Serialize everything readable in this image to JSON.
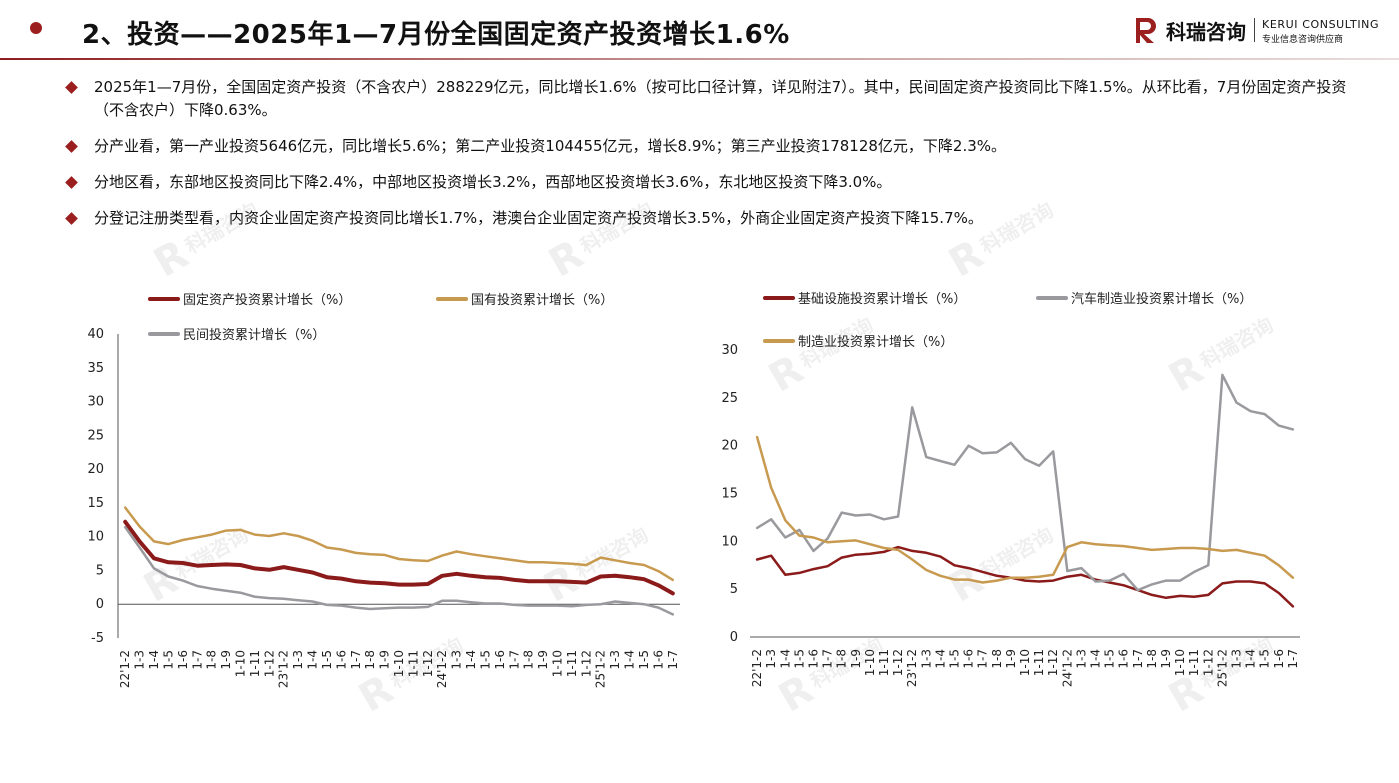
{
  "header": {
    "title": "2、投资——2025年1—7月份全国固定资产投资增长1.6%",
    "logo_cn": "科瑞咨询",
    "logo_en": "KERUI CONSULTING",
    "logo_sub": "专业信息咨询供应商",
    "accent": "#9b1f1f"
  },
  "bullets": [
    "2025年1—7月份，全国固定资产投资（不含农户）288229亿元，同比增长1.6%（按可比口径计算，详见附注7）。其中，民间固定资产投资同比下降1.5%。从环比看，7月份固定资产投资（不含农户）下降0.63%。",
    "分产业看，第一产业投资5646亿元，同比增长5.6%；第二产业投资104455亿元，增长8.9%；第三产业投资178128亿元，下降2.3%。",
    "分地区看，东部地区投资同比下降2.4%，中部地区投资增长3.2%，西部地区投资增长3.6%，东北地区投资下降3.0%。",
    "分登记注册类型看，内资企业固定资产投资同比增长1.7%，港澳台企业固定资产投资增长3.5%，外商企业固定资产投资下降15.7%。"
  ],
  "watermark_text": "科瑞咨询",
  "chart_data": [
    {
      "type": "line",
      "ylim": [
        -5,
        40
      ],
      "yticks": [
        -5,
        0,
        5,
        10,
        15,
        20,
        25,
        30,
        35,
        40
      ],
      "categories": [
        "22'1-2",
        "1-3",
        "1-4",
        "1-5",
        "1-6",
        "1-7",
        "1-8",
        "1-9",
        "1-10",
        "1-11",
        "1-12",
        "23'1-2",
        "1-3",
        "1-4",
        "1-5",
        "1-6",
        "1-7",
        "1-8",
        "1-9",
        "1-10",
        "1-11",
        "1-12",
        "24'1-2",
        "1-3",
        "1-4",
        "1-5",
        "1-6",
        "1-7",
        "1-8",
        "1-9",
        "1-10",
        "1-11",
        "1-12",
        "25'1-2",
        "1-3",
        "1-4",
        "1-5",
        "1-6",
        "1-7"
      ],
      "legend_position": "top",
      "series": [
        {
          "name": "固定资产投资累计增长（%）",
          "color": "#8b1a1a",
          "width": 4,
          "values": [
            12.2,
            9.3,
            6.8,
            6.2,
            6.1,
            5.7,
            5.8,
            5.9,
            5.8,
            5.3,
            5.1,
            5.5,
            5.1,
            4.7,
            4.0,
            3.8,
            3.4,
            3.2,
            3.1,
            2.9,
            2.9,
            3.0,
            4.2,
            4.5,
            4.2,
            4.0,
            3.9,
            3.6,
            3.4,
            3.4,
            3.4,
            3.3,
            3.2,
            4.1,
            4.2,
            4.0,
            3.7,
            2.8,
            1.6
          ]
        },
        {
          "name": "国有投资累计增长（%）",
          "color": "#c89a50",
          "width": 2.5,
          "values": [
            14.3,
            11.5,
            9.3,
            8.9,
            9.5,
            9.9,
            10.3,
            10.9,
            11.0,
            10.3,
            10.1,
            10.5,
            10.1,
            9.4,
            8.4,
            8.1,
            7.6,
            7.4,
            7.3,
            6.7,
            6.5,
            6.4,
            7.2,
            7.8,
            7.4,
            7.1,
            6.8,
            6.5,
            6.2,
            6.2,
            6.1,
            6.0,
            5.8,
            6.9,
            6.5,
            6.1,
            5.8,
            4.9,
            3.6
          ]
        },
        {
          "name": "民间投资累计增长（%）",
          "color": "#9a9a9e",
          "width": 2.5,
          "values": [
            11.4,
            8.4,
            5.3,
            4.1,
            3.5,
            2.7,
            2.3,
            2.0,
            1.7,
            1.1,
            0.9,
            0.8,
            0.6,
            0.4,
            -0.1,
            -0.2,
            -0.5,
            -0.7,
            -0.6,
            -0.5,
            -0.5,
            -0.4,
            0.5,
            0.5,
            0.3,
            0.1,
            0.1,
            -0.1,
            -0.2,
            -0.2,
            -0.2,
            -0.3,
            -0.1,
            0.0,
            0.4,
            0.2,
            0.0,
            -0.5,
            -1.5
          ]
        }
      ]
    },
    {
      "type": "line",
      "ylim": [
        0,
        30
      ],
      "yticks": [
        0,
        5,
        10,
        15,
        20,
        25,
        30
      ],
      "categories": [
        "22'1-2",
        "1-3",
        "1-4",
        "1-5",
        "1-6",
        "1-7",
        "1-8",
        "1-9",
        "1-10",
        "1-11",
        "1-12",
        "23'1-2",
        "1-3",
        "1-4",
        "1-5",
        "1-6",
        "1-7",
        "1-8",
        "1-9",
        "1-10",
        "1-11",
        "1-12",
        "24'1-2",
        "1-3",
        "1-4",
        "1-5",
        "1-6",
        "1-7",
        "1-8",
        "1-9",
        "1-10",
        "1-11",
        "1-12",
        "25'1-2",
        "1-3",
        "1-4",
        "1-5",
        "1-6",
        "1-7"
      ],
      "legend_position": "top",
      "series": [
        {
          "name": "基础设施投资累计增长（%）",
          "color": "#8b1a1a",
          "width": 2.5,
          "values": [
            8.1,
            8.5,
            6.5,
            6.7,
            7.1,
            7.4,
            8.3,
            8.6,
            8.7,
            8.9,
            9.4,
            9.0,
            8.8,
            8.4,
            7.5,
            7.2,
            6.8,
            6.4,
            6.2,
            5.9,
            5.8,
            5.9,
            6.3,
            6.5,
            6.0,
            5.7,
            5.4,
            4.9,
            4.4,
            4.1,
            4.3,
            4.2,
            4.4,
            5.6,
            5.8,
            5.8,
            5.6,
            4.6,
            3.2
          ]
        },
        {
          "name": "汽车制造业投资累计增长（%）",
          "color": "#9a9a9e",
          "width": 2.5,
          "values": [
            11.4,
            12.3,
            10.4,
            11.2,
            9.0,
            10.3,
            13.0,
            12.7,
            12.8,
            12.3,
            12.6,
            24.0,
            18.8,
            18.4,
            18.0,
            20.0,
            19.2,
            19.3,
            20.3,
            18.6,
            17.9,
            19.4,
            6.9,
            7.2,
            5.8,
            5.9,
            6.6,
            4.9,
            5.5,
            5.9,
            5.9,
            6.8,
            7.5,
            27.4,
            24.5,
            23.6,
            23.3,
            22.1,
            21.7
          ]
        },
        {
          "name": "制造业投资累计增长（%）",
          "color": "#c89a50",
          "width": 2.5,
          "values": [
            20.9,
            15.6,
            12.2,
            10.6,
            10.4,
            9.9,
            10.0,
            10.1,
            9.7,
            9.3,
            9.1,
            8.1,
            7.0,
            6.4,
            6.0,
            6.0,
            5.7,
            5.9,
            6.2,
            6.2,
            6.3,
            6.5,
            9.4,
            9.9,
            9.7,
            9.6,
            9.5,
            9.3,
            9.1,
            9.2,
            9.3,
            9.3,
            9.2,
            9.0,
            9.1,
            8.8,
            8.5,
            7.5,
            6.2
          ]
        }
      ]
    }
  ]
}
